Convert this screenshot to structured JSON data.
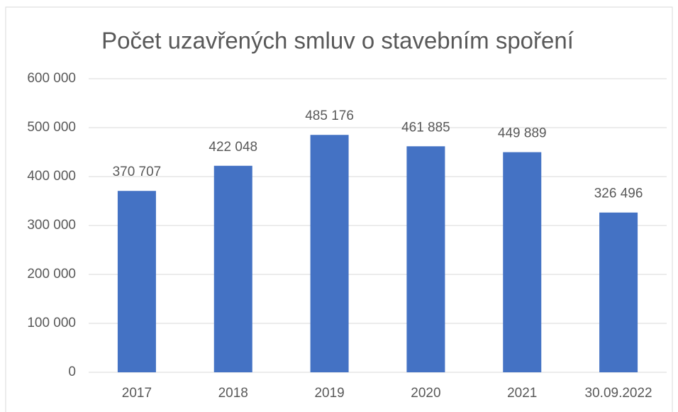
{
  "chart_data": {
    "type": "bar",
    "title": "Počet uzavřených smluv o stavebním spoření",
    "categories": [
      "2017",
      "2018",
      "2019",
      "2020",
      "2021",
      "30.09.2022"
    ],
    "values": [
      370707,
      422048,
      485176,
      461885,
      449889,
      326496
    ],
    "value_labels": [
      "370 707",
      "422 048",
      "485 176",
      "461 885",
      "449 889",
      "326 496"
    ],
    "color": "#4472c4",
    "ylim": [
      0,
      600000
    ],
    "yticks": [
      0,
      {
        "value": 100000,
        "label": "100 000"
      },
      {
        "value": 200000,
        "label": "200 000"
      },
      {
        "value": 300000,
        "label": "300 000"
      },
      {
        "value": 400000,
        "label": "400 000"
      },
      {
        "value": 500000,
        "label": "500 000"
      },
      {
        "value": 600000,
        "label": "600 000"
      }
    ],
    "grid": true
  }
}
